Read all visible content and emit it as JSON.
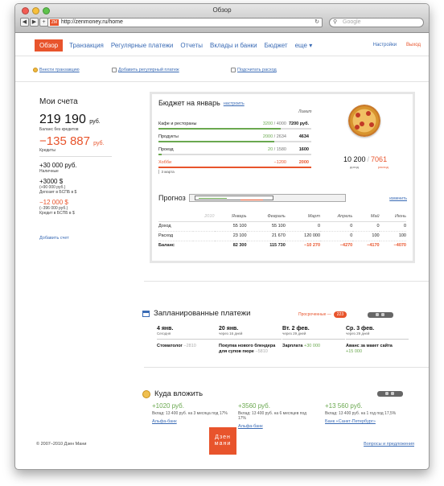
{
  "window": {
    "title": "Обзор"
  },
  "browser": {
    "url": "http://zenmoney.ru/home",
    "search_placeholder": "Google",
    "favicon_text": "ZM"
  },
  "nav": {
    "items": [
      "Обзор",
      "Транзакция",
      "Регулярные платежи",
      "Отчеты",
      "Вклады и банки",
      "Бюджет",
      "еще ▾"
    ],
    "settings": "Настройки",
    "logout": "Выход"
  },
  "actions": [
    "Внести транзакцию",
    "Добавить регулярный платеж",
    "Подсчитать расход"
  ],
  "accounts": {
    "title": "Мои счета",
    "balance": "219 190",
    "balance_unit": "руб.",
    "balance_note": "Баланс без кредитов",
    "credit": "−135 887",
    "credit_unit": "руб.",
    "credit_note": "Кредиты",
    "items": [
      {
        "value": "+30 000 руб.",
        "note": "Наличные",
        "negative": false
      },
      {
        "value": "+3000 $",
        "note": "(+90 000 руб.)",
        "note2": "Депозит в БСПБ в $",
        "negative": false
      },
      {
        "value": "−12 000 $",
        "note": "(−396 000 руб.)",
        "note2": "Кредит в БСПБ в $",
        "negative": true
      }
    ],
    "add": "Добавить счет"
  },
  "budget": {
    "title": "Бюджет на январь",
    "edit": "настроить",
    "limit_label": "Лимит",
    "rows": [
      {
        "name": "Кафе и рестораны",
        "spent": "3200",
        "limit_total": "4000",
        "limit": "7200 руб.",
        "progress": 0.8,
        "over": false
      },
      {
        "name": "Продукты",
        "spent": "2000",
        "limit_total": "2634",
        "limit": "4634",
        "progress": 0.76,
        "over": false
      },
      {
        "name": "Проезд",
        "spent": "20",
        "limit_total": "1580",
        "limit": "1600",
        "progress": 0.02,
        "over": false
      },
      {
        "name": "Хобби",
        "spent": "",
        "limit_total": "−1200",
        "limit": "2000",
        "progress": 1.0,
        "over": true
      }
    ],
    "days_left": "3 марта",
    "income": "10 200",
    "expense": "7061",
    "income_label": "доход",
    "expense_label": "расход"
  },
  "forecast": {
    "title": "Прогноз",
    "edit": "изменить",
    "year": "2010",
    "months": [
      "Январь",
      "Февраль",
      "Март",
      "Апрель",
      "Май",
      "Июнь"
    ],
    "rows": [
      {
        "label": "Доход",
        "values": [
          "55 100",
          "55 100",
          "0",
          "0",
          "0",
          "0"
        ]
      },
      {
        "label": "Расход",
        "values": [
          "23 100",
          "21 670",
          "120 000",
          "0",
          "100",
          "100"
        ]
      },
      {
        "label": "Баланс",
        "values": [
          "82 300",
          "115 730",
          "−10 270",
          "−4270",
          "−4170",
          "−4070"
        ]
      }
    ]
  },
  "scheduled": {
    "title": "Запланированные платежи",
    "overdue_label": "Просроченные —",
    "overdue_count": "223",
    "items": [
      {
        "date": "4 янв.",
        "sub": "Сегодня",
        "name": "Стоматолог",
        "amount": "−2810",
        "positive": false
      },
      {
        "date": "20 янв.",
        "sub": "через 16 дней",
        "name": "Покупка нового блендера для супов пюре",
        "amount": "−5810",
        "positive": false
      },
      {
        "date": "Вт. 2 фев.",
        "sub": "через 29 дней",
        "name": "Зарплата",
        "amount": "+30 000",
        "positive": true
      },
      {
        "date": "Ср. 3 фев.",
        "sub": "через 29 дней",
        "name": "Аванс за макет сайта",
        "amount": "+15 000",
        "positive": true
      }
    ]
  },
  "invest": {
    "title": "Куда вложить",
    "items": [
      {
        "value": "+1020 руб.",
        "text": "Вклад: 13 400 руб. на 3 месяца под 17%",
        "bank": "Альфа-банк"
      },
      {
        "value": "+3560 руб.",
        "text": "Вклад: 13 400 руб. на 6 месяцев под 17%",
        "bank": "Альфа-банк"
      },
      {
        "value": "+13 560 руб.",
        "text": "Вклад: 13 400 руб. на 1 год под 17,5%",
        "bank": "Банк «Санкт-Петербург»"
      }
    ]
  },
  "footer": {
    "copyright": "© 2007–2010 Дзен Мани",
    "logo_line1": "Дзен",
    "logo_line2": "мани",
    "feedback": "Вопросы и предложения"
  },
  "colors": {
    "accent": "#e8542c",
    "link": "#3a6bb5",
    "positive": "#6aa84f"
  }
}
